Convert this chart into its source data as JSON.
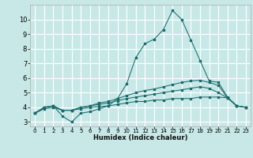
{
  "title": "",
  "xlabel": "Humidex (Indice chaleur)",
  "xlim": [
    -0.5,
    23.5
  ],
  "ylim": [
    2.7,
    11.0
  ],
  "yticks": [
    3,
    4,
    5,
    6,
    7,
    8,
    9,
    10
  ],
  "xticks": [
    0,
    1,
    2,
    3,
    4,
    5,
    6,
    7,
    8,
    9,
    10,
    11,
    12,
    13,
    14,
    15,
    16,
    17,
    18,
    19,
    20,
    21,
    22,
    23
  ],
  "bg_color": "#c8e8e8",
  "grid_color": "#ffffff",
  "line_color": "#1a6b6b",
  "lines": [
    {
      "x": [
        0,
        1,
        2,
        3,
        4,
        5,
        6,
        7,
        8,
        9,
        10,
        11,
        12,
        13,
        14,
        15,
        16,
        17,
        18,
        19,
        20,
        21,
        22,
        23
      ],
      "y": [
        3.6,
        4.0,
        4.1,
        3.4,
        3.0,
        3.6,
        3.7,
        3.9,
        4.1,
        4.6,
        5.6,
        7.4,
        8.35,
        8.65,
        9.3,
        10.6,
        10.0,
        8.6,
        7.2,
        5.8,
        5.7,
        4.7,
        4.1,
        4.0
      ]
    },
    {
      "x": [
        0,
        1,
        2,
        3,
        4,
        5,
        6,
        7,
        8,
        9,
        10,
        11,
        12,
        13,
        14,
        15,
        16,
        17,
        18,
        19,
        20,
        21,
        22,
        23
      ],
      "y": [
        3.6,
        4.0,
        4.1,
        3.8,
        3.8,
        4.0,
        4.1,
        4.3,
        4.4,
        4.6,
        4.8,
        5.0,
        5.15,
        5.25,
        5.4,
        5.55,
        5.7,
        5.8,
        5.85,
        5.7,
        5.5,
        4.65,
        4.1,
        4.0
      ]
    },
    {
      "x": [
        0,
        1,
        2,
        3,
        4,
        5,
        6,
        7,
        8,
        9,
        10,
        11,
        12,
        13,
        14,
        15,
        16,
        17,
        18,
        19,
        20,
        21,
        22,
        23
      ],
      "y": [
        3.6,
        4.0,
        4.1,
        3.8,
        3.8,
        4.0,
        4.1,
        4.2,
        4.3,
        4.45,
        4.6,
        4.7,
        4.8,
        4.9,
        5.0,
        5.1,
        5.2,
        5.3,
        5.4,
        5.3,
        5.0,
        4.65,
        4.1,
        4.0
      ]
    },
    {
      "x": [
        0,
        1,
        2,
        3,
        4,
        5,
        6,
        7,
        8,
        9,
        10,
        11,
        12,
        13,
        14,
        15,
        16,
        17,
        18,
        19,
        20,
        21,
        22,
        23
      ],
      "y": [
        3.6,
        3.9,
        4.0,
        3.8,
        3.8,
        3.9,
        4.0,
        4.05,
        4.1,
        4.2,
        4.3,
        4.4,
        4.4,
        4.5,
        4.5,
        4.6,
        4.6,
        4.6,
        4.7,
        4.7,
        4.7,
        4.65,
        4.1,
        4.0
      ]
    }
  ]
}
